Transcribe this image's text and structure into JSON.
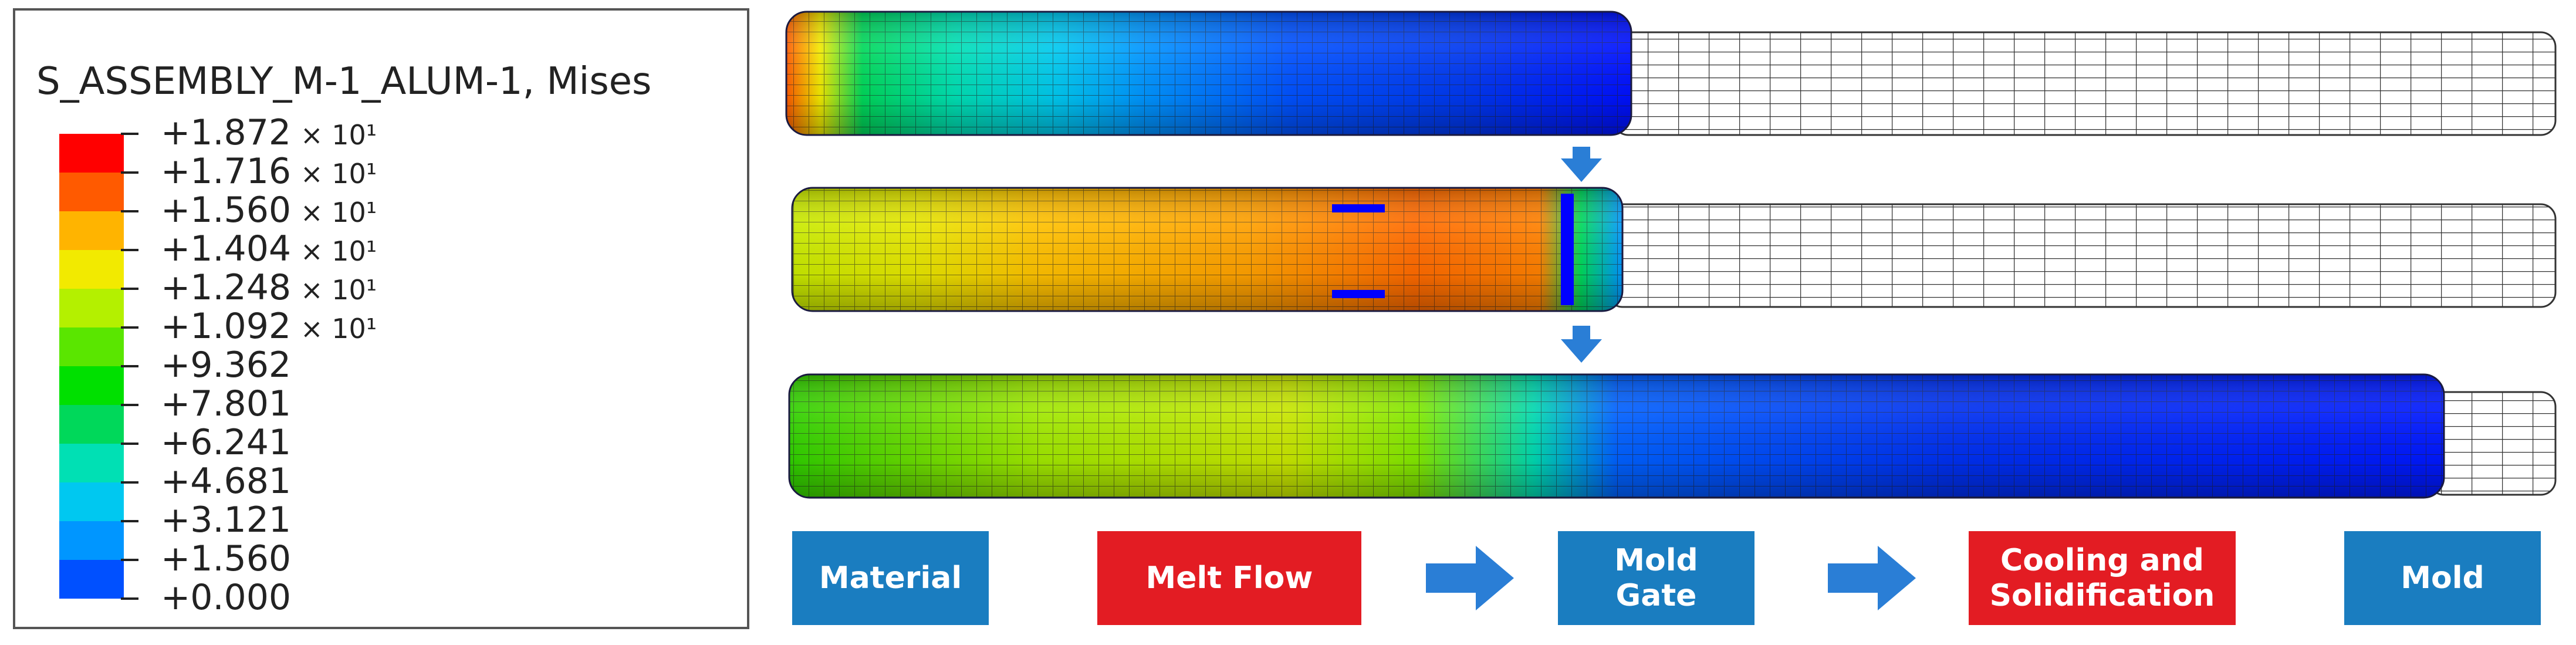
{
  "legend": {
    "title": "S_ASSEMBLY_M-1_ALUM-1, Mises",
    "entries": [
      {
        "mantissa": "+1.872",
        "exp": "× 10¹",
        "color": "#ff0000"
      },
      {
        "mantissa": "+1.716",
        "exp": "× 10¹",
        "color": "#ff5a00"
      },
      {
        "mantissa": "+1.560",
        "exp": "× 10¹",
        "color": "#ffb400"
      },
      {
        "mantissa": "+1.404",
        "exp": "× 10¹",
        "color": "#f2ea00"
      },
      {
        "mantissa": "+1.248",
        "exp": "× 10¹",
        "color": "#b4f000"
      },
      {
        "mantissa": "+1.092",
        "exp": "× 10¹",
        "color": "#5ae600"
      },
      {
        "mantissa": "+9.362",
        "exp": "",
        "color": "#00e000"
      },
      {
        "mantissa": "+7.801",
        "exp": "",
        "color": "#00d85a"
      },
      {
        "mantissa": "+6.241",
        "exp": "",
        "color": "#00e0b4"
      },
      {
        "mantissa": "+4.681",
        "exp": "",
        "color": "#00c8f0"
      },
      {
        "mantissa": "+3.121",
        "exp": "",
        "color": "#0096ff"
      },
      {
        "mantissa": "+1.560",
        "exp": "",
        "color": "#0050ff"
      },
      {
        "mantissa": "+0.000",
        "exp": "",
        "color": "#0000ff"
      }
    ]
  },
  "stages": [
    {
      "label": "Material",
      "color": "#1a7dc0"
    },
    {
      "label": "Melt Flow",
      "color": "#e31c23"
    },
    {
      "label": "Mold Gate",
      "color": "#1a7dc0"
    },
    {
      "label": "Cooling and Solidification",
      "color": "#e31c23"
    },
    {
      "label": "Mold",
      "color": "#1a7dc0"
    }
  ],
  "arrow_color": "#2a7ed6"
}
